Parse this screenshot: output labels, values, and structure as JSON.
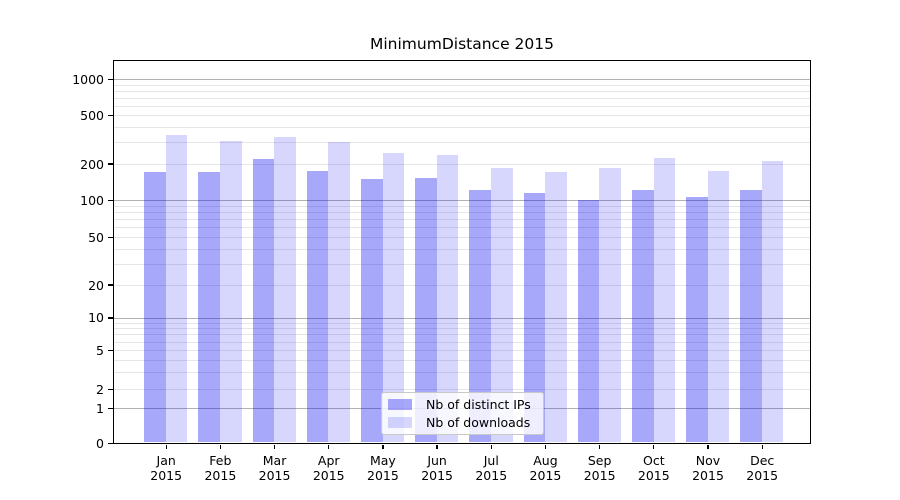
{
  "title": "MinimumDistance 2015",
  "chart_data": {
    "type": "bar",
    "title": "MinimumDistance 2015",
    "categories": [
      "Jan 2015",
      "Feb 2015",
      "Mar 2015",
      "Apr 2015",
      "May 2015",
      "Jun 2015",
      "Jul 2015",
      "Aug 2015",
      "Sep 2015",
      "Oct 2015",
      "Nov 2015",
      "Dec 2015"
    ],
    "months": [
      "Jan",
      "Feb",
      "Mar",
      "Apr",
      "May",
      "Jun",
      "Jul",
      "Aug",
      "Sep",
      "Oct",
      "Nov",
      "Dec"
    ],
    "year": "2015",
    "series": [
      {
        "name": "Nb of distinct IPs",
        "fill": "rgba(0,0,240,0.34)",
        "color_hex": "#a9a9f8",
        "values": [
          170,
          170,
          218,
          174,
          150,
          154,
          122,
          116,
          100,
          121,
          106,
          121
        ]
      },
      {
        "name": "Nb of downloads",
        "fill": "rgba(0,0,240,0.155)",
        "color_hex": "#d9d9fb",
        "values": [
          345,
          310,
          330,
          300,
          243,
          238,
          183,
          172,
          186,
          222,
          175,
          210
        ]
      }
    ],
    "y_ticks": [
      0,
      1,
      2,
      5,
      10,
      20,
      50,
      100,
      200,
      500,
      1000
    ],
    "yscale": "symlog",
    "ylim": [
      0,
      1400
    ],
    "grid": true,
    "legend_position": "lower center",
    "grid_major_color": "#b2b2b2",
    "grid_minor_color": "#e6e6e6",
    "spine_color": "#000000"
  }
}
